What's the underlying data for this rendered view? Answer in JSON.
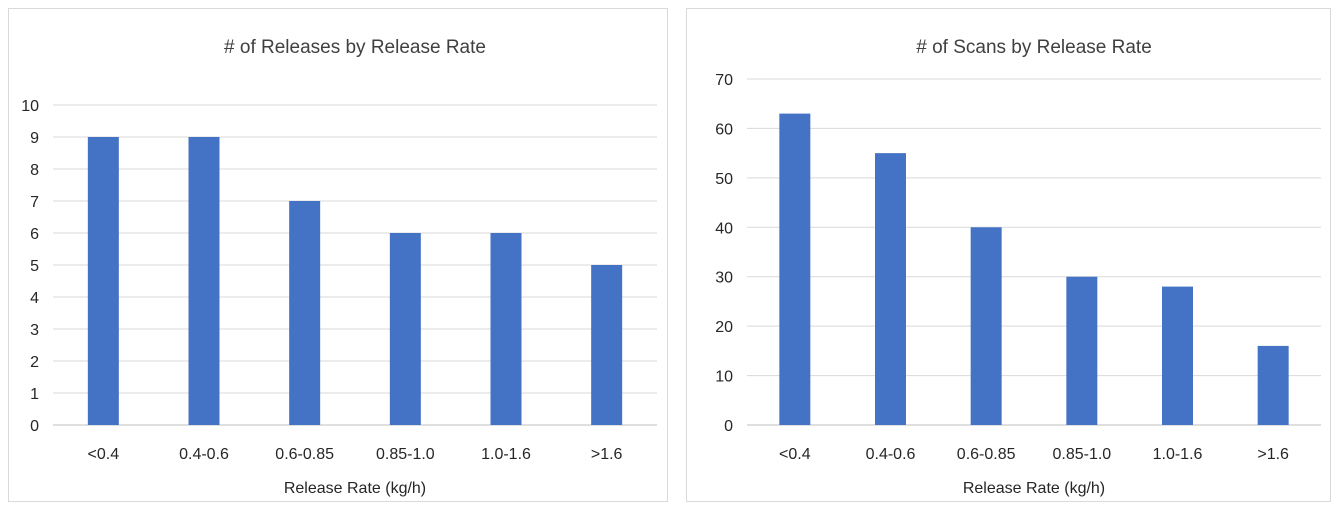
{
  "chart_data": [
    {
      "type": "bar",
      "title": "# of Releases by Release Rate",
      "xlabel": "Release Rate (kg/h)",
      "ylabel": "",
      "categories": [
        "<0.4",
        "0.4-0.6",
        "0.6-0.85",
        "0.85-1.0",
        "1.0-1.6",
        ">1.6"
      ],
      "values": [
        9,
        9,
        7,
        6,
        6,
        5
      ],
      "ylim": [
        0,
        10
      ],
      "yticks": [
        0,
        1,
        2,
        3,
        4,
        5,
        6,
        7,
        8,
        9,
        10
      ],
      "grid": true,
      "color": "#4472c4"
    },
    {
      "type": "bar",
      "title": "# of Scans by Release Rate",
      "xlabel": "Release Rate (kg/h)",
      "ylabel": "",
      "categories": [
        "<0.4",
        "0.4-0.6",
        "0.6-0.85",
        "0.85-1.0",
        "1.0-1.6",
        ">1.6"
      ],
      "values": [
        63,
        55,
        40,
        30,
        28,
        16
      ],
      "ylim": [
        0,
        70
      ],
      "yticks": [
        0,
        10,
        20,
        30,
        40,
        50,
        60,
        70
      ],
      "grid": true,
      "color": "#4472c4"
    }
  ]
}
